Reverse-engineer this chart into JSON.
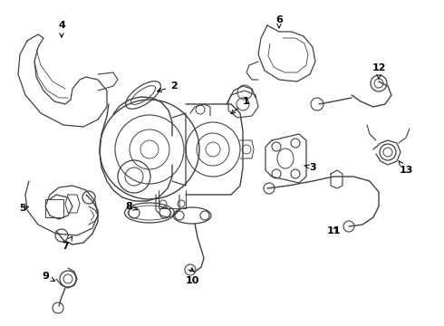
{
  "background_color": "#ffffff",
  "line_color": "#404040",
  "fig_width": 4.9,
  "fig_height": 3.6,
  "dpi": 100
}
